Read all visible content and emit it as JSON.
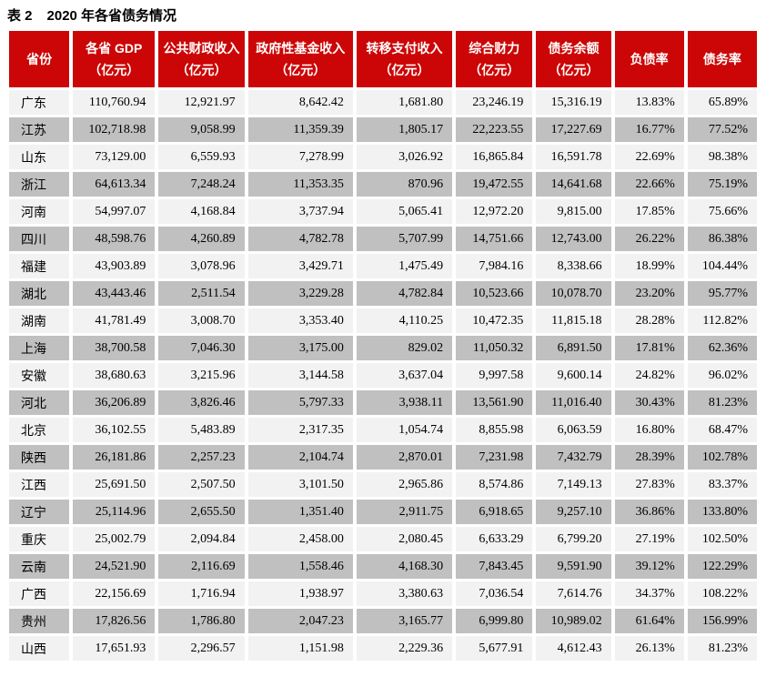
{
  "title": {
    "label": "表 2",
    "caption": "2020 年各省债务情况"
  },
  "colors": {
    "header_bg": "#CC0606",
    "header_text": "#FFFFFF",
    "row_odd_bg": "#F2F2F2",
    "row_even_bg": "#C0C0C0",
    "title_text": "#000000"
  },
  "table": {
    "columns": [
      {
        "label": "省份",
        "align": "left"
      },
      {
        "label": "各省 GDP（亿元）",
        "align": "right"
      },
      {
        "label": "公共财政收入（亿元）",
        "align": "right"
      },
      {
        "label": "政府性基金收入（亿元）",
        "align": "right"
      },
      {
        "label": "转移支付收入（亿元）",
        "align": "right"
      },
      {
        "label": "综合财力（亿元）",
        "align": "right"
      },
      {
        "label": "债务余额（亿元）",
        "align": "right"
      },
      {
        "label": "负债率",
        "align": "right"
      },
      {
        "label": "债务率",
        "align": "right"
      }
    ],
    "rows": [
      [
        "广东",
        "110,760.94",
        "12,921.97",
        "8,642.42",
        "1,681.80",
        "23,246.19",
        "15,316.19",
        "13.83%",
        "65.89%"
      ],
      [
        "江苏",
        "102,718.98",
        "9,058.99",
        "11,359.39",
        "1,805.17",
        "22,223.55",
        "17,227.69",
        "16.77%",
        "77.52%"
      ],
      [
        "山东",
        "73,129.00",
        "6,559.93",
        "7,278.99",
        "3,026.92",
        "16,865.84",
        "16,591.78",
        "22.69%",
        "98.38%"
      ],
      [
        "浙江",
        "64,613.34",
        "7,248.24",
        "11,353.35",
        "870.96",
        "19,472.55",
        "14,641.68",
        "22.66%",
        "75.19%"
      ],
      [
        "河南",
        "54,997.07",
        "4,168.84",
        "3,737.94",
        "5,065.41",
        "12,972.20",
        "9,815.00",
        "17.85%",
        "75.66%"
      ],
      [
        "四川",
        "48,598.76",
        "4,260.89",
        "4,782.78",
        "5,707.99",
        "14,751.66",
        "12,743.00",
        "26.22%",
        "86.38%"
      ],
      [
        "福建",
        "43,903.89",
        "3,078.96",
        "3,429.71",
        "1,475.49",
        "7,984.16",
        "8,338.66",
        "18.99%",
        "104.44%"
      ],
      [
        "湖北",
        "43,443.46",
        "2,511.54",
        "3,229.28",
        "4,782.84",
        "10,523.66",
        "10,078.70",
        "23.20%",
        "95.77%"
      ],
      [
        "湖南",
        "41,781.49",
        "3,008.70",
        "3,353.40",
        "4,110.25",
        "10,472.35",
        "11,815.18",
        "28.28%",
        "112.82%"
      ],
      [
        "上海",
        "38,700.58",
        "7,046.30",
        "3,175.00",
        "829.02",
        "11,050.32",
        "6,891.50",
        "17.81%",
        "62.36%"
      ],
      [
        "安徽",
        "38,680.63",
        "3,215.96",
        "3,144.58",
        "3,637.04",
        "9,997.58",
        "9,600.14",
        "24.82%",
        "96.02%"
      ],
      [
        "河北",
        "36,206.89",
        "3,826.46",
        "5,797.33",
        "3,938.11",
        "13,561.90",
        "11,016.40",
        "30.43%",
        "81.23%"
      ],
      [
        "北京",
        "36,102.55",
        "5,483.89",
        "2,317.35",
        "1,054.74",
        "8,855.98",
        "6,063.59",
        "16.80%",
        "68.47%"
      ],
      [
        "陕西",
        "26,181.86",
        "2,257.23",
        "2,104.74",
        "2,870.01",
        "7,231.98",
        "7,432.79",
        "28.39%",
        "102.78%"
      ],
      [
        "江西",
        "25,691.50",
        "2,507.50",
        "3,101.50",
        "2,965.86",
        "8,574.86",
        "7,149.13",
        "27.83%",
        "83.37%"
      ],
      [
        "辽宁",
        "25,114.96",
        "2,655.50",
        "1,351.40",
        "2,911.75",
        "6,918.65",
        "9,257.10",
        "36.86%",
        "133.80%"
      ],
      [
        "重庆",
        "25,002.79",
        "2,094.84",
        "2,458.00",
        "2,080.45",
        "6,633.29",
        "6,799.20",
        "27.19%",
        "102.50%"
      ],
      [
        "云南",
        "24,521.90",
        "2,116.69",
        "1,558.46",
        "4,168.30",
        "7,843.45",
        "9,591.90",
        "39.12%",
        "122.29%"
      ],
      [
        "广西",
        "22,156.69",
        "1,716.94",
        "1,938.97",
        "3,380.63",
        "7,036.54",
        "7,614.76",
        "34.37%",
        "108.22%"
      ],
      [
        "贵州",
        "17,826.56",
        "1,786.80",
        "2,047.23",
        "3,165.77",
        "6,999.80",
        "10,989.02",
        "61.64%",
        "156.99%"
      ],
      [
        "山西",
        "17,651.93",
        "2,296.57",
        "1,151.98",
        "2,229.36",
        "5,677.91",
        "4,612.43",
        "26.13%",
        "81.23%"
      ]
    ]
  }
}
